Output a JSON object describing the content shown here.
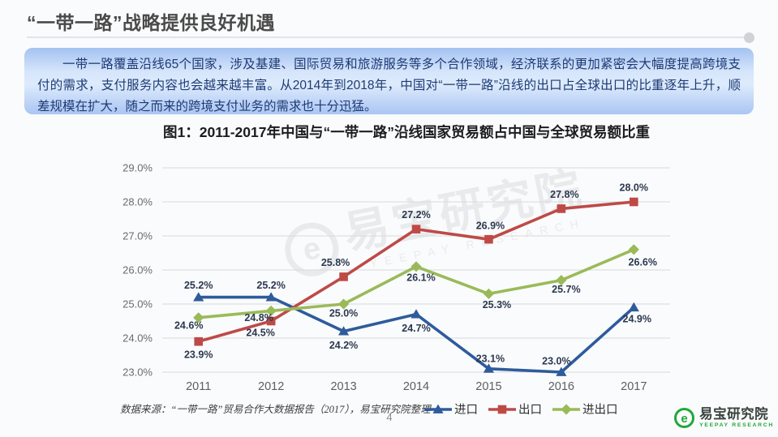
{
  "slide": {
    "title": "“一带一路”战略提供良好机遇",
    "page_number": "4"
  },
  "intro": {
    "text": "一带一路覆盖沿线65个国家，涉及基建、国际贸易和旅游服务等多个合作领域，经济联系的更加紧密会大幅度提高跨境支付的需求，支付服务内容也会越来越丰富。从2014年到2018年，中国对“一带一路”沿线的出口占全球出口的比重逐年上升，顺差规模在扩大，随之而来的跨境支付业务的需求也十分迅猛。"
  },
  "chart_data": {
    "type": "line",
    "title": "图1：2011-2017年中国与“一带一路”沿线国家贸易额占中国与全球贸易额比重",
    "categories": [
      "2011",
      "2012",
      "2013",
      "2014",
      "2015",
      "2016",
      "2017"
    ],
    "series": [
      {
        "name": "进口",
        "marker": "triangle",
        "color": "#2e5b9c",
        "values": [
          25.2,
          25.2,
          24.2,
          24.7,
          23.1,
          23.0,
          24.9
        ]
      },
      {
        "name": "出口",
        "marker": "square",
        "color": "#be4a47",
        "values": [
          23.9,
          24.5,
          25.8,
          27.2,
          26.9,
          27.8,
          28.0
        ]
      },
      {
        "name": "进出口",
        "marker": "diamond",
        "color": "#9aba58",
        "values": [
          24.6,
          24.8,
          25.0,
          26.1,
          25.3,
          25.7,
          26.6
        ]
      }
    ],
    "ylim": [
      23.0,
      29.0
    ],
    "ytick_step": 1.0,
    "ytick_labels": [
      "23.0%",
      "24.0%",
      "25.0%",
      "26.0%",
      "27.0%",
      "28.0%",
      "29.0%"
    ],
    "grid": true,
    "legend_position": "bottom",
    "data_label_format": "0.0%",
    "source": "数据来源：“一带一路”贸易合作大数据报告（2017），易宝研究院整理"
  },
  "watermark": {
    "text": "易宝研究院",
    "subtext": "YEEPAY RESEARCH",
    "glyph": "e"
  },
  "footer_logo": {
    "glyph": "e",
    "name": "易宝研究院",
    "subname": "YEEPAY RESEARCH",
    "color": "#21a838"
  }
}
